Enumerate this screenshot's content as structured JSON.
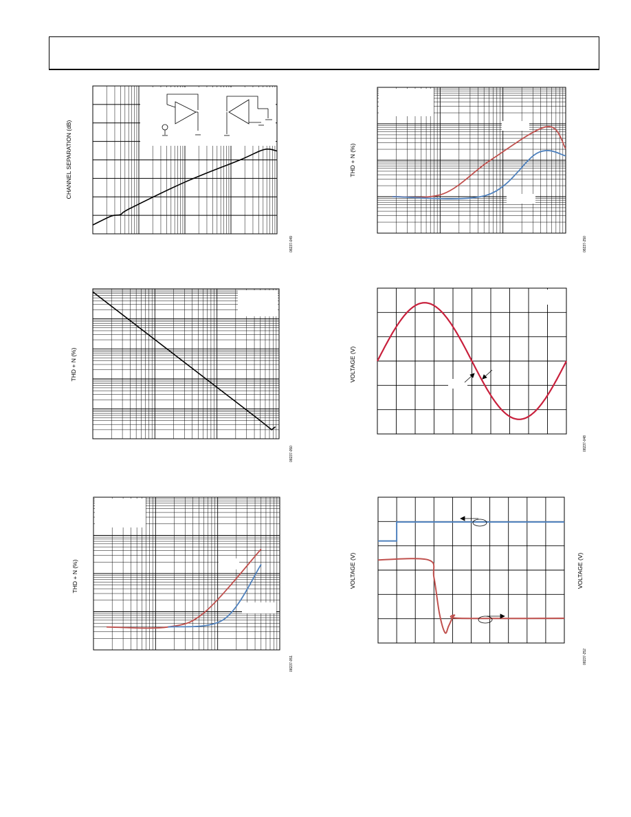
{
  "header": {
    "title": ""
  },
  "charts": [
    {
      "id": "chart1",
      "ylabel": "CHANNEL SEPARATION (dB)",
      "tag": "08237-049"
    },
    {
      "id": "chart2",
      "ylabel": "THD + N (%)",
      "tag": "08237-050"
    },
    {
      "id": "chart3",
      "ylabel": "THD + N (%)",
      "tag": "08237-051"
    },
    {
      "id": "chart4",
      "ylabel": "THD + N (%)",
      "tag": "08237-250"
    },
    {
      "id": "chart5",
      "ylabel": "VOLTAGE (V)",
      "tag": "08237-048"
    },
    {
      "id": "chart6",
      "ylabel": "VOLTAGE (V)",
      "ylabel2": "VOLTAGE (V)",
      "tag": "08237-252"
    }
  ],
  "colors": {
    "red": "#c0504d",
    "blue": "#4f81bd",
    "sine": "#c8203c",
    "black": "#000000"
  },
  "chart_data": [
    {
      "type": "line",
      "scale": "log-x",
      "series": [
        {
          "values": [
            [
              0,
              0.06
            ],
            [
              0.1,
              0.12
            ],
            [
              0.15,
              0.13
            ],
            [
              0.2,
              0.17
            ],
            [
              0.5,
              0.35
            ],
            [
              0.8,
              0.5
            ],
            [
              0.93,
              0.57
            ],
            [
              1,
              0.56
            ]
          ]
        }
      ]
    },
    {
      "type": "line",
      "scale": "log-log",
      "series": [
        {
          "values": [
            [
              0,
              0.98
            ],
            [
              0.45,
              0.55
            ],
            [
              0.9,
              0.12
            ],
            [
              0.96,
              0.06
            ],
            [
              0.98,
              0.08
            ]
          ]
        }
      ]
    },
    {
      "type": "line",
      "scale": "log-log",
      "series": [
        {
          "color": "red",
          "values": [
            [
              0.07,
              0.15
            ],
            [
              0.4,
              0.15
            ],
            [
              0.6,
              0.25
            ],
            [
              0.9,
              0.66
            ]
          ]
        },
        {
          "color": "blue",
          "values": [
            [
              0.4,
              0.15
            ],
            [
              0.7,
              0.2
            ],
            [
              0.9,
              0.56
            ]
          ]
        }
      ]
    },
    {
      "type": "line",
      "scale": "log-log",
      "series": [
        {
          "color": "red",
          "values": [
            [
              0.08,
              0.25
            ],
            [
              0.35,
              0.27
            ],
            [
              0.6,
              0.5
            ],
            [
              0.9,
              0.73
            ],
            [
              1,
              0.58
            ]
          ]
        },
        {
          "color": "blue",
          "values": [
            [
              0.08,
              0.25
            ],
            [
              0.58,
              0.26
            ],
            [
              0.85,
              0.55
            ],
            [
              1,
              0.53
            ]
          ]
        }
      ]
    },
    {
      "type": "line",
      "scale": "linear",
      "series": [
        {
          "color": "sine",
          "values": [
            [
              0,
              0.5
            ],
            [
              0.25,
              0.9
            ],
            [
              0.75,
              0.1
            ],
            [
              1,
              0.5
            ]
          ]
        }
      ]
    },
    {
      "type": "line",
      "scale": "linear",
      "series": [
        {
          "color": "blue",
          "values": [
            [
              0,
              0.7
            ],
            [
              0.1,
              0.7
            ],
            [
              0.1,
              0.83
            ],
            [
              1,
              0.83
            ]
          ]
        },
        {
          "color": "red",
          "values": [
            [
              0,
              0.57
            ],
            [
              0.27,
              0.57
            ],
            [
              0.36,
              0.08
            ],
            [
              0.4,
              0.17
            ],
            [
              1,
              0.17
            ]
          ]
        }
      ]
    }
  ]
}
